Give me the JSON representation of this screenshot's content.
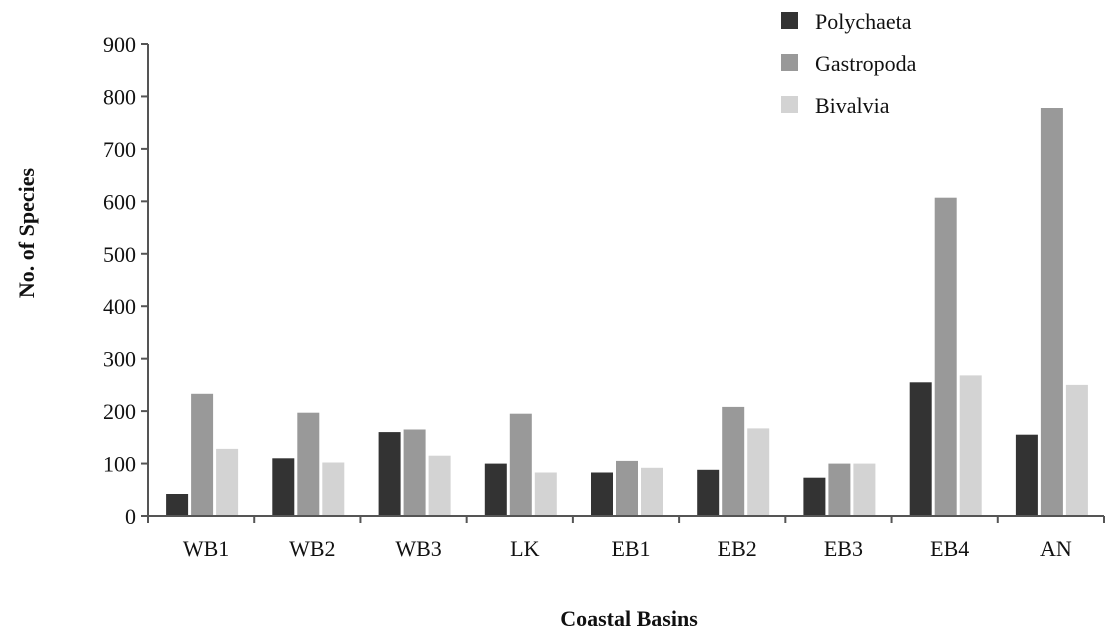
{
  "chart_data": {
    "type": "bar",
    "title": "",
    "xlabel": "Coastal Basins",
    "ylabel": "No. of Species",
    "ylim": [
      0,
      900
    ],
    "yticks": [
      0,
      100,
      200,
      300,
      400,
      500,
      600,
      700,
      800,
      900
    ],
    "grid": false,
    "legend_position": "top-right",
    "categories": [
      "WB1",
      "WB2",
      "WB3",
      "LK",
      "EB1",
      "EB2",
      "EB3",
      "EB4",
      "AN"
    ],
    "series": [
      {
        "name": "Polychaeta",
        "color": "#333333",
        "values": [
          42,
          110,
          160,
          100,
          83,
          88,
          73,
          255,
          155
        ]
      },
      {
        "name": "Gastropoda",
        "color": "#999999",
        "values": [
          233,
          197,
          165,
          195,
          105,
          208,
          100,
          607,
          778
        ]
      },
      {
        "name": "Bivalvia",
        "color": "#d3d3d3",
        "values": [
          128,
          102,
          115,
          83,
          92,
          167,
          100,
          268,
          250
        ]
      }
    ]
  }
}
